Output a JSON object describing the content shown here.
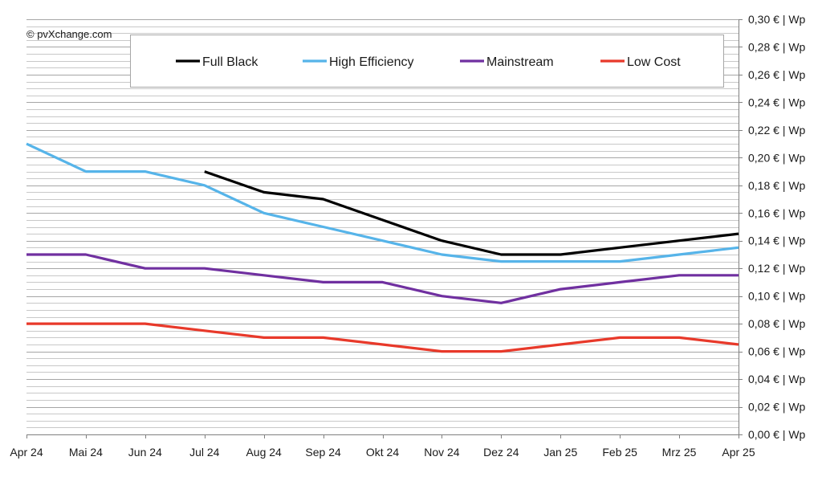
{
  "copyright": "© pvXchange.com",
  "chart_data": {
    "type": "line",
    "title": "",
    "xlabel": "",
    "ylabel": "",
    "categories": [
      "Apr 24",
      "Mai 24",
      "Jun 24",
      "Jul 24",
      "Aug 24",
      "Sep 24",
      "Okt 24",
      "Nov 24",
      "Dez 24",
      "Jan 25",
      "Feb 25",
      "Mrz 25",
      "Apr 25"
    ],
    "ylim": [
      0,
      0.3
    ],
    "y_major_step": 0.02,
    "y_minor_step": 0.005,
    "y_tick_labels": [
      "0,00 € | Wp",
      "0,02 € | Wp",
      "0,04 € | Wp",
      "0,06 € | Wp",
      "0,08 € | Wp",
      "0,10 € | Wp",
      "0,12 € | Wp",
      "0,14 € | Wp",
      "0,16 € | Wp",
      "0,18 € | Wp",
      "0,20 € | Wp",
      "0,22 € | Wp",
      "0,24 € | Wp",
      "0,26 € | Wp",
      "0,28 € | Wp",
      "0,30 € | Wp"
    ],
    "y_axis_side": "right",
    "grid": true,
    "legend_placement": "top",
    "series": [
      {
        "name": "Full Black",
        "color": "#000000",
        "values": [
          null,
          null,
          null,
          0.19,
          0.175,
          0.17,
          0.155,
          0.14,
          0.13,
          0.13,
          0.135,
          0.14,
          0.145
        ]
      },
      {
        "name": "High Efficiency",
        "color": "#56b4e9",
        "values": [
          0.21,
          0.19,
          0.19,
          0.18,
          0.16,
          0.15,
          0.14,
          0.13,
          0.125,
          0.125,
          0.125,
          0.13,
          0.135
        ]
      },
      {
        "name": "Mainstream",
        "color": "#7030a0",
        "values": [
          0.13,
          0.13,
          0.12,
          0.12,
          0.115,
          0.11,
          0.11,
          0.1,
          0.095,
          0.105,
          0.11,
          0.115,
          0.115
        ]
      },
      {
        "name": "Low Cost",
        "color": "#e8392a",
        "values": [
          0.08,
          0.08,
          0.08,
          0.075,
          0.07,
          0.07,
          0.065,
          0.06,
          0.06,
          0.065,
          0.07,
          0.07,
          0.065
        ]
      }
    ]
  }
}
